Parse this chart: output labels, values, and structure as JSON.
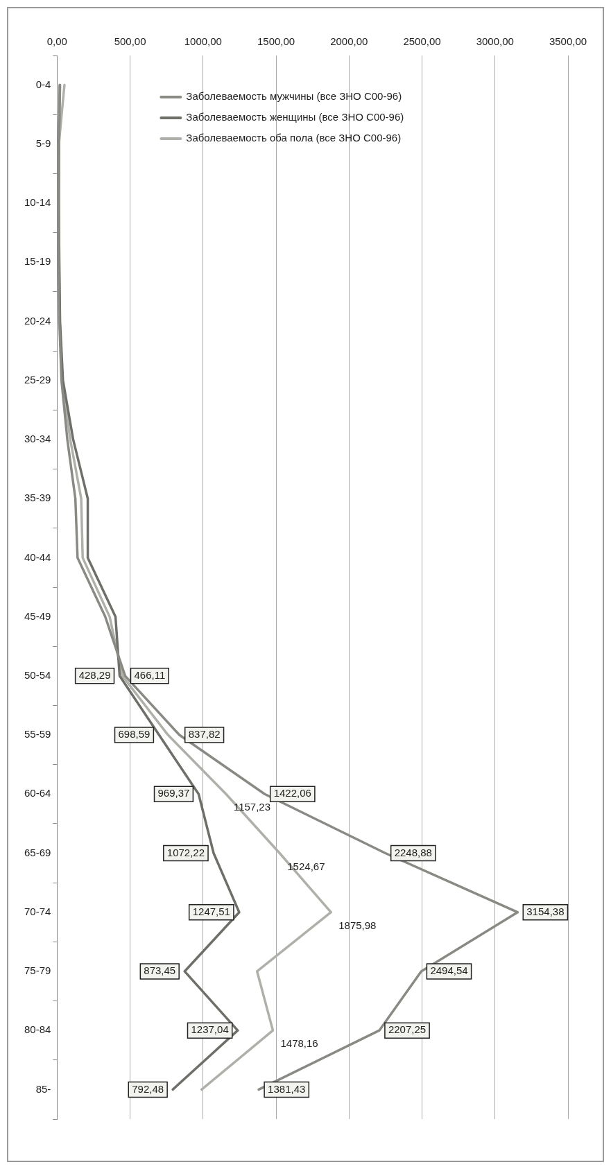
{
  "chart_data": {
    "type": "line",
    "categories": [
      "0-4",
      "5-9",
      "10-14",
      "15-19",
      "20-24",
      "25-29",
      "30-34",
      "35-39",
      "40-44",
      "45-49",
      "50-54",
      "55-59",
      "60-64",
      "65-69",
      "70-74",
      "75-79",
      "80-84",
      "85-"
    ],
    "series": [
      {
        "name": "Заболеваемость мужчины (все ЗНО С00-96)",
        "color": "#8a8a84",
        "values": [
          20,
          12,
          10,
          12,
          15,
          30,
          70,
          125,
          140,
          330,
          466.11,
          837.82,
          1422.06,
          2248.88,
          3154.38,
          2494.54,
          2207.25,
          1381.43
        ],
        "value_labels": [
          null,
          null,
          null,
          null,
          null,
          null,
          null,
          null,
          null,
          null,
          "466,11",
          "837,82",
          "1422,06",
          "2248,88",
          "3154,38",
          "2494,54",
          "2207,25",
          "1381,43"
        ]
      },
      {
        "name": "Заболеваемость женщины (все ЗНО С00-96)",
        "color": "#6f6f69",
        "values": [
          18,
          12,
          11,
          15,
          20,
          40,
          110,
          210,
          210,
          400,
          428.29,
          698.59,
          969.37,
          1072.22,
          1247.51,
          873.45,
          1237.04,
          792.48
        ],
        "value_labels": [
          null,
          null,
          null,
          null,
          null,
          null,
          null,
          null,
          null,
          null,
          "428,29",
          "698,59",
          "969,37",
          "1072,22",
          "1247,51",
          "873,45",
          "1237,04",
          "792,48"
        ]
      },
      {
        "name": "Заболеваемость оба пола (все ЗНО С00-96)",
        "color": "#b0b0aa",
        "values": [
          50,
          12,
          11,
          13,
          18,
          35,
          90,
          165,
          175,
          360,
          447,
          760,
          1157.23,
          1524.67,
          1875.98,
          1370,
          1478.16,
          990
        ],
        "value_labels": [
          null,
          null,
          null,
          null,
          null,
          null,
          null,
          null,
          null,
          null,
          null,
          null,
          "1157,23",
          "1524,67",
          "1875,98",
          null,
          "1478,16",
          null
        ]
      }
    ],
    "xlim": [
      0,
      3500
    ],
    "xticks": [
      {
        "value": 0,
        "label": "0,00"
      },
      {
        "value": 500,
        "label": "500,00"
      },
      {
        "value": 1000,
        "label": "1000,00"
      },
      {
        "value": 1500,
        "label": "1500,00"
      },
      {
        "value": 2000,
        "label": "2000,00"
      },
      {
        "value": 2500,
        "label": "2500,00"
      },
      {
        "value": 3000,
        "label": "3000,00"
      },
      {
        "value": 3500,
        "label": "3500,00"
      }
    ],
    "grid": "x",
    "orientation": "horizontal",
    "legend": "top left",
    "marker": "none"
  }
}
